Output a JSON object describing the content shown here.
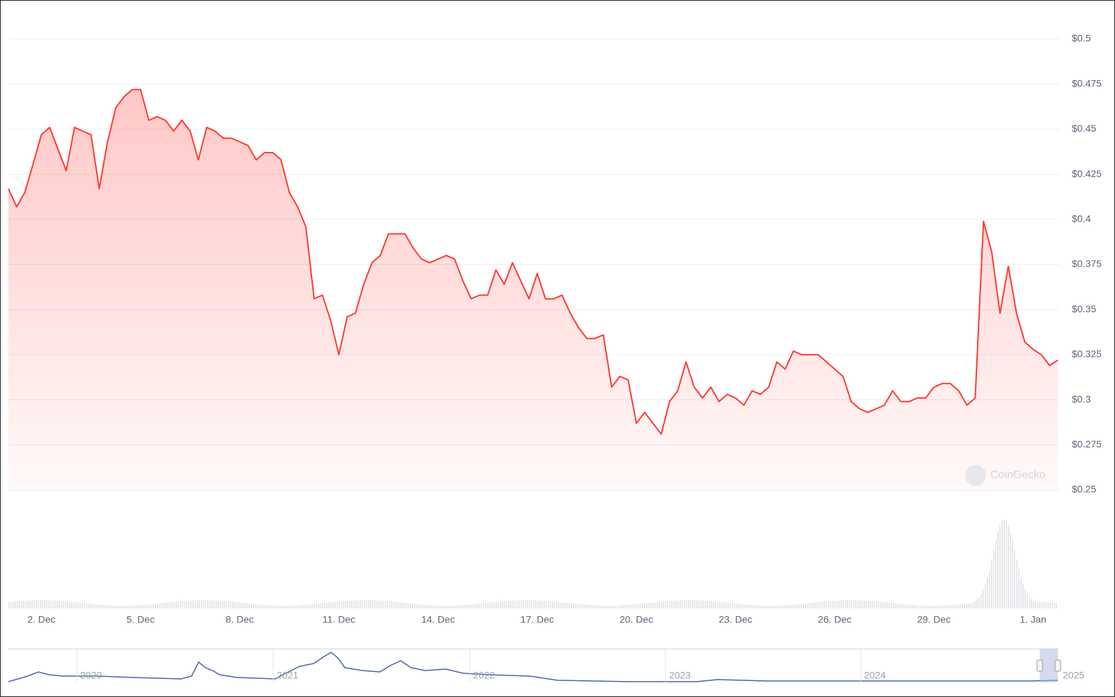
{
  "chart_data": {
    "type": "line",
    "color": "#ff3a33",
    "values": [
      0.417,
      0.407,
      0.415,
      0.431,
      0.447,
      0.451,
      0.439,
      0.427,
      0.451,
      0.449,
      0.447,
      0.417,
      0.443,
      0.462,
      0.468,
      0.472,
      0.472,
      0.455,
      0.457,
      0.455,
      0.449,
      0.455,
      0.449,
      0.433,
      0.451,
      0.449,
      0.445,
      0.445,
      0.443,
      0.441,
      0.433,
      0.437,
      0.437,
      0.433,
      0.415,
      0.407,
      0.396,
      0.356,
      0.358,
      0.344,
      0.325,
      0.346,
      0.348,
      0.364,
      0.376,
      0.38,
      0.392,
      0.392,
      0.392,
      0.384,
      0.378,
      0.376,
      0.378,
      0.38,
      0.378,
      0.366,
      0.356,
      0.358,
      0.358,
      0.372,
      0.364,
      0.376,
      0.366,
      0.356,
      0.37,
      0.356,
      0.356,
      0.358,
      0.348,
      0.34,
      0.334,
      0.334,
      0.336,
      0.307,
      0.313,
      0.311,
      0.287,
      0.293,
      0.287,
      0.281,
      0.299,
      0.305,
      0.321,
      0.307,
      0.301,
      0.307,
      0.299,
      0.303,
      0.301,
      0.297,
      0.305,
      0.303,
      0.307,
      0.321,
      0.317,
      0.327,
      0.325,
      0.325,
      0.325,
      0.321,
      0.317,
      0.313,
      0.299,
      0.295,
      0.293,
      0.295,
      0.297,
      0.305,
      0.299,
      0.299,
      0.301,
      0.301,
      0.307,
      0.309,
      0.309,
      0.305,
      0.297,
      0.301,
      0.399,
      0.382,
      0.348,
      0.374,
      0.348,
      0.332,
      0.328,
      0.325,
      0.319,
      0.322
    ],
    "xlim": [
      0,
      127
    ],
    "xticks": [
      {
        "value": 4,
        "label": "2. Dec"
      },
      {
        "value": 16,
        "label": "5. Dec"
      },
      {
        "value": 28,
        "label": "8. Dec"
      },
      {
        "value": 40,
        "label": "11. Dec"
      },
      {
        "value": 52,
        "label": "14. Dec"
      },
      {
        "value": 64,
        "label": "17. Dec"
      },
      {
        "value": 76,
        "label": "20. Dec"
      },
      {
        "value": 88,
        "label": "23. Dec"
      },
      {
        "value": 100,
        "label": "26. Dec"
      },
      {
        "value": 112,
        "label": "29. Dec"
      },
      {
        "value": 124,
        "label": "1. Jan"
      }
    ],
    "ylim": [
      0.25,
      0.5
    ],
    "yticks": [
      {
        "value": 0.5,
        "label": "$0.5"
      },
      {
        "value": 0.475,
        "label": "$0.475"
      },
      {
        "value": 0.45,
        "label": "$0.45"
      },
      {
        "value": 0.425,
        "label": "$0.425"
      },
      {
        "value": 0.4,
        "label": "$0.4"
      },
      {
        "value": 0.375,
        "label": "$0.375"
      },
      {
        "value": 0.35,
        "label": "$0.35"
      },
      {
        "value": 0.325,
        "label": "$0.325"
      },
      {
        "value": 0.3,
        "label": "$0.3"
      },
      {
        "value": 0.275,
        "label": "$0.275"
      },
      {
        "value": 0.25,
        "label": "$0.25"
      }
    ],
    "grid": true,
    "watermark": "CoinGecko",
    "navigator_labels": [
      "2020",
      "2021",
      "2022",
      "2023",
      "2024",
      "2025"
    ]
  }
}
